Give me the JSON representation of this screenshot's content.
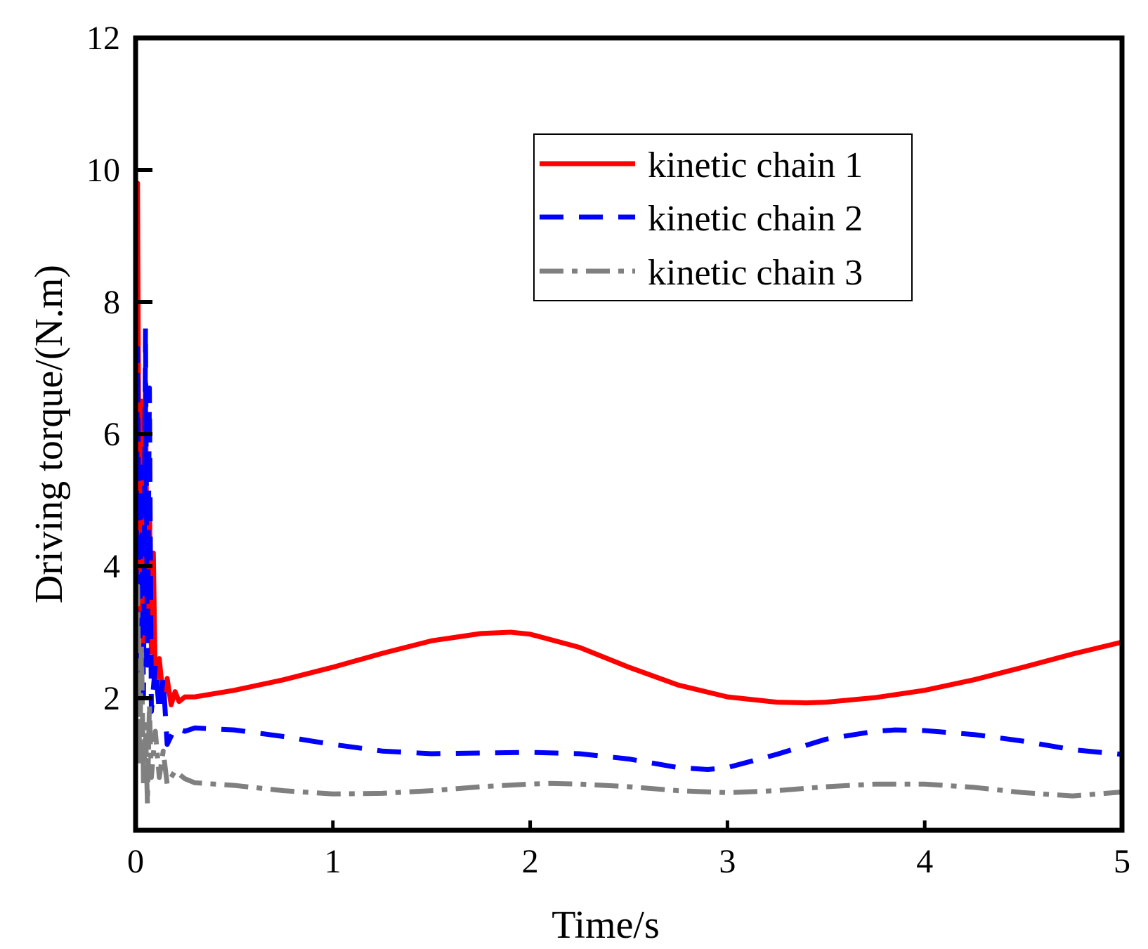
{
  "chart_data": {
    "type": "line",
    "title": "",
    "xlabel": "Time/s",
    "ylabel": "Driving torque/(N.m)",
    "xlim": [
      0,
      5
    ],
    "ylim": [
      0,
      12
    ],
    "xticks": [
      0,
      1,
      2,
      3,
      4,
      5
    ],
    "yticks": [
      2,
      4,
      6,
      8,
      10,
      12
    ],
    "xtick_labels": [
      "0",
      "1",
      "2",
      "3",
      "4",
      "5"
    ],
    "ytick_labels": [
      "2",
      "4",
      "6",
      "8",
      "10",
      "12"
    ],
    "grid": false,
    "legend_position": "top-right",
    "series": [
      {
        "name": "kinetic chain 1",
        "color": "#ff0000",
        "style": "solid",
        "x": [
          0,
          0.01,
          0.02,
          0.03,
          0.04,
          0.05,
          0.06,
          0.07,
          0.08,
          0.09,
          0.1,
          0.12,
          0.14,
          0.16,
          0.18,
          0.2,
          0.22,
          0.25,
          0.3,
          0.5,
          0.75,
          1.0,
          1.25,
          1.5,
          1.75,
          1.9,
          2.0,
          2.25,
          2.5,
          2.75,
          3.0,
          3.25,
          3.4,
          3.5,
          3.75,
          4.0,
          4.25,
          4.5,
          4.75,
          5.0
        ],
        "y": [
          1.0,
          9.8,
          3.0,
          6.5,
          2.5,
          6.8,
          3.0,
          5.0,
          2.7,
          4.2,
          2.2,
          2.6,
          2.0,
          2.3,
          1.9,
          2.1,
          1.95,
          2.02,
          2.02,
          2.12,
          2.28,
          2.47,
          2.68,
          2.87,
          2.98,
          3.0,
          2.97,
          2.77,
          2.47,
          2.2,
          2.02,
          1.94,
          1.93,
          1.94,
          2.01,
          2.12,
          2.28,
          2.47,
          2.67,
          2.85
        ]
      },
      {
        "name": "kinetic chain 2",
        "color": "#0000ff",
        "style": "dashed",
        "x": [
          0,
          0.01,
          0.02,
          0.03,
          0.04,
          0.05,
          0.06,
          0.07,
          0.08,
          0.1,
          0.12,
          0.14,
          0.16,
          0.2,
          0.25,
          0.3,
          0.5,
          0.75,
          1.0,
          1.25,
          1.5,
          1.75,
          2.0,
          2.25,
          2.5,
          2.75,
          2.9,
          3.0,
          3.25,
          3.5,
          3.75,
          3.85,
          4.0,
          4.25,
          4.5,
          4.75,
          5.0
        ],
        "y": [
          1.8,
          7.3,
          2.2,
          5.5,
          2.0,
          7.6,
          2.5,
          6.7,
          1.8,
          2.5,
          1.8,
          2.3,
          1.3,
          1.55,
          1.5,
          1.55,
          1.52,
          1.42,
          1.3,
          1.2,
          1.16,
          1.17,
          1.18,
          1.16,
          1.08,
          0.95,
          0.92,
          0.95,
          1.15,
          1.38,
          1.5,
          1.52,
          1.51,
          1.45,
          1.35,
          1.22,
          1.15
        ]
      },
      {
        "name": "kinetic chain 3",
        "color": "#808080",
        "style": "dashdot",
        "x": [
          0,
          0.01,
          0.02,
          0.03,
          0.04,
          0.05,
          0.06,
          0.07,
          0.08,
          0.1,
          0.12,
          0.14,
          0.16,
          0.2,
          0.25,
          0.3,
          0.5,
          0.75,
          1.0,
          1.25,
          1.5,
          1.75,
          2.0,
          2.1,
          2.25,
          2.5,
          2.75,
          3.0,
          3.25,
          3.5,
          3.75,
          4.0,
          4.25,
          4.5,
          4.75,
          5.0
        ],
        "y": [
          1.5,
          3.7,
          1.0,
          2.8,
          0.7,
          1.6,
          0.4,
          1.9,
          0.8,
          1.5,
          0.8,
          1.2,
          0.7,
          0.9,
          0.78,
          0.72,
          0.68,
          0.6,
          0.55,
          0.56,
          0.6,
          0.66,
          0.7,
          0.71,
          0.7,
          0.66,
          0.6,
          0.57,
          0.6,
          0.66,
          0.7,
          0.7,
          0.65,
          0.57,
          0.52,
          0.58
        ]
      }
    ]
  }
}
